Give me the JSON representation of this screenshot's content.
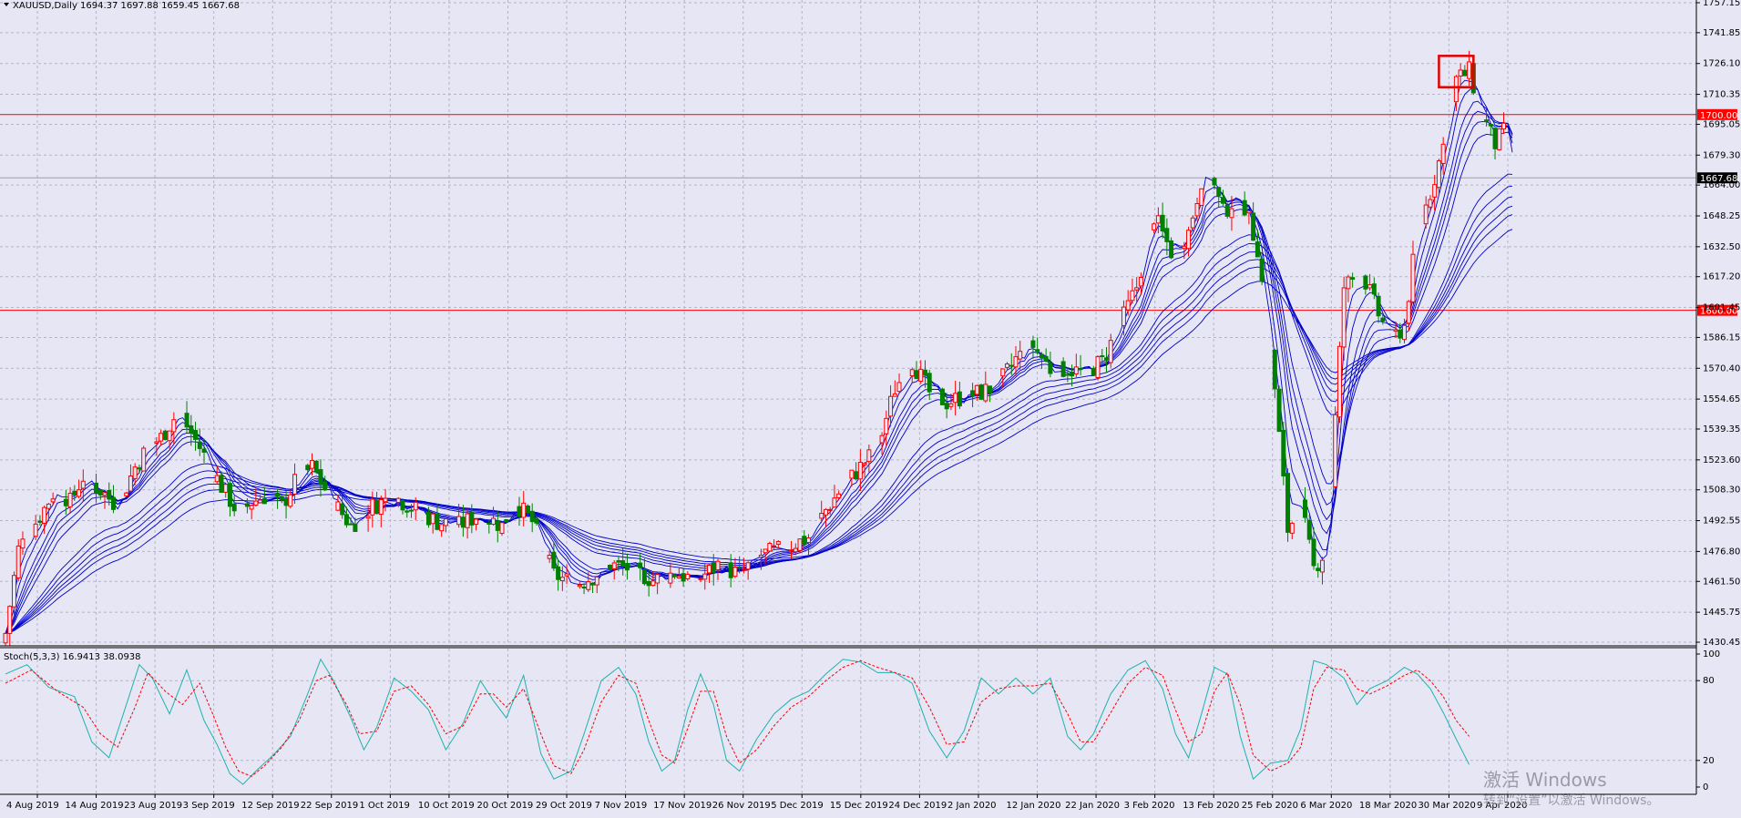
{
  "header": {
    "symbol": "XAUUSD,Daily",
    "ohlc": "1694.37 1697.88 1659.45 1667.68"
  },
  "stoch_header": "Stoch(5,3,3) 16.9413 38.0938",
  "watermark": {
    "line1": "激活 Windows",
    "line2": "转到“设置”以激活 Windows。"
  },
  "colors": {
    "background": "#e6e6f5",
    "grid": "#b4b4c8",
    "bull_candle": "#ff0000",
    "bear_candle": "#008000",
    "moving_averages": "#0000c8",
    "horizontal_levels": "#ff0000",
    "stoch_main": "#20b2aa",
    "stoch_signal": "#ff0000",
    "highlight_box": "#e00000"
  },
  "chart_data": [
    {
      "type": "candlestick",
      "symbol": "XAUUSD",
      "timeframe": "Daily",
      "ylim": [
        1430.45,
        1757.15
      ],
      "y_ticks": [
        1757.15,
        1741.85,
        1726.1,
        1710.35,
        1695.05,
        1679.3,
        1664.0,
        1648.25,
        1632.5,
        1617.2,
        1601.45,
        1586.15,
        1570.4,
        1554.65,
        1539.35,
        1523.6,
        1508.3,
        1492.55,
        1476.8,
        1461.5,
        1445.75,
        1430.45
      ],
      "x_labels": [
        "4 Aug 2019",
        "14 Aug 2019",
        "23 Aug 2019",
        "3 Sep 2019",
        "12 Sep 2019",
        "22 Sep 2019",
        "1 Oct 2019",
        "10 Oct 2019",
        "20 Oct 2019",
        "29 Oct 2019",
        "7 Nov 2019",
        "17 Nov 2019",
        "26 Nov 2019",
        "5 Dec 2019",
        "15 Dec 2019",
        "24 Dec 2019",
        "2 Jan 2020",
        "12 Jan 2020",
        "22 Jan 2020",
        "3 Feb 2020",
        "13 Feb 2020",
        "25 Feb 2020",
        "6 Mar 2020",
        "18 Mar 2020",
        "30 Mar 2020",
        "9 Apr 2020"
      ],
      "levels": [
        {
          "value": 1700.0,
          "label": "1700.00"
        },
        {
          "value": 1600.0,
          "label": "1600.00"
        }
      ],
      "current_price": {
        "value": 1667.68,
        "label": "1667.68"
      },
      "close_path": [
        [
          0,
          1435
        ],
        [
          3,
          1478
        ],
        [
          8,
          1495
        ],
        [
          12,
          1510
        ],
        [
          15,
          1502
        ],
        [
          18,
          1515
        ],
        [
          22,
          1508
        ],
        [
          26,
          1500
        ],
        [
          30,
          1520
        ],
        [
          33,
          1530
        ],
        [
          36,
          1535
        ],
        [
          40,
          1548
        ],
        [
          45,
          1530
        ],
        [
          50,
          1510
        ],
        [
          54,
          1496
        ],
        [
          57,
          1502
        ],
        [
          60,
          1505
        ],
        [
          64,
          1500
        ],
        [
          67,
          1512
        ],
        [
          71,
          1520
        ],
        [
          75,
          1505
        ],
        [
          80,
          1490
        ],
        [
          85,
          1500
        ],
        [
          90,
          1505
        ],
        [
          95,
          1498
        ],
        [
          100,
          1492
        ],
        [
          105,
          1490
        ],
        [
          110,
          1496
        ],
        [
          115,
          1490
        ],
        [
          118,
          1502
        ],
        [
          122,
          1492
        ],
        [
          127,
          1465
        ],
        [
          132,
          1460
        ],
        [
          136,
          1464
        ],
        [
          140,
          1470
        ],
        [
          145,
          1468
        ],
        [
          150,
          1462
        ],
        [
          155,
          1466
        ],
        [
          160,
          1462
        ],
        [
          165,
          1470
        ],
        [
          170,
          1465
        ],
        [
          175,
          1475
        ],
        [
          180,
          1478
        ],
        [
          186,
          1484
        ],
        [
          190,
          1498
        ],
        [
          194,
          1510
        ],
        [
          198,
          1520
        ],
        [
          202,
          1530
        ],
        [
          206,
          1560
        ],
        [
          210,
          1574
        ],
        [
          214,
          1558
        ],
        [
          218,
          1553
        ],
        [
          222,
          1556
        ],
        [
          226,
          1558
        ],
        [
          230,
          1562
        ],
        [
          234,
          1575
        ],
        [
          238,
          1582
        ],
        [
          242,
          1570
        ],
        [
          246,
          1570
        ],
        [
          250,
          1568
        ],
        [
          254,
          1574
        ],
        [
          258,
          1592
        ],
        [
          262,
          1612
        ],
        [
          266,
          1648
        ],
        [
          270,
          1630
        ],
        [
          274,
          1640
        ],
        [
          278,
          1676
        ],
        [
          282,
          1650
        ],
        [
          286,
          1660
        ],
        [
          290,
          1632
        ],
        [
          294,
          1560
        ],
        [
          297,
          1488
        ],
        [
          300,
          1500
        ],
        [
          303,
          1468
        ],
        [
          306,
          1478
        ],
        [
          310,
          1612
        ],
        [
          314,
          1620
        ],
        [
          318,
          1598
        ],
        [
          321,
          1585
        ],
        [
          324,
          1592
        ],
        [
          327,
          1640
        ],
        [
          330,
          1660
        ],
        [
          333,
          1684
        ],
        [
          336,
          1718
        ],
        [
          339,
          1722
        ],
        [
          342,
          1700
        ],
        [
          345,
          1685
        ],
        [
          348,
          1694
        ],
        [
          349,
          1667.68
        ]
      ],
      "ma_periods": [
        3,
        5,
        8,
        10,
        12,
        15,
        30,
        35,
        40,
        45,
        50,
        60
      ],
      "highlight_box": {
        "from_day": 332,
        "to_day": 340,
        "low": 1714,
        "high": 1730
      }
    },
    {
      "type": "line",
      "indicator": "Stochastic",
      "parameters": [
        5,
        3,
        3
      ],
      "ylim": [
        0,
        100
      ],
      "y_ticks": [
        100,
        80,
        20,
        0
      ],
      "series": [
        {
          "name": "main",
          "latest": 16.9413,
          "path": [
            [
              0,
              85
            ],
            [
              5,
              92
            ],
            [
              10,
              75
            ],
            [
              16,
              68
            ],
            [
              20,
              34
            ],
            [
              24,
              22
            ],
            [
              28,
              62
            ],
            [
              31,
              92
            ],
            [
              34,
              82
            ],
            [
              38,
              55
            ],
            [
              42,
              88
            ],
            [
              46,
              50
            ],
            [
              49,
              32
            ],
            [
              52,
              10
            ],
            [
              55,
              2
            ],
            [
              58,
              12
            ],
            [
              62,
              24
            ],
            [
              66,
              38
            ],
            [
              70,
              70
            ],
            [
              73,
              96
            ],
            [
              76,
              80
            ],
            [
              80,
              52
            ],
            [
              83,
              28
            ],
            [
              86,
              45
            ],
            [
              90,
              82
            ],
            [
              94,
              72
            ],
            [
              98,
              58
            ],
            [
              102,
              28
            ],
            [
              106,
              48
            ],
            [
              110,
              80
            ],
            [
              113,
              65
            ],
            [
              116,
              52
            ],
            [
              120,
              84
            ],
            [
              124,
              25
            ],
            [
              127,
              6
            ],
            [
              131,
              12
            ],
            [
              134,
              40
            ],
            [
              138,
              80
            ],
            [
              142,
              90
            ],
            [
              146,
              70
            ],
            [
              149,
              34
            ],
            [
              152,
              12
            ],
            [
              155,
              20
            ],
            [
              158,
              58
            ],
            [
              161,
              85
            ],
            [
              164,
              62
            ],
            [
              167,
              20
            ],
            [
              170,
              12
            ],
            [
              174,
              36
            ],
            [
              178,
              55
            ],
            [
              182,
              66
            ],
            [
              186,
              72
            ],
            [
              190,
              85
            ],
            [
              194,
              96
            ],
            [
              198,
              94
            ],
            [
              202,
              86
            ],
            [
              206,
              86
            ],
            [
              210,
              78
            ],
            [
              214,
              42
            ],
            [
              218,
              22
            ],
            [
              222,
              42
            ],
            [
              226,
              82
            ],
            [
              230,
              70
            ],
            [
              234,
              82
            ],
            [
              238,
              70
            ],
            [
              242,
              82
            ],
            [
              246,
              38
            ],
            [
              249,
              28
            ],
            [
              252,
              40
            ],
            [
              256,
              70
            ],
            [
              260,
              88
            ],
            [
              264,
              95
            ],
            [
              268,
              74
            ],
            [
              271,
              40
            ],
            [
              274,
              22
            ],
            [
              277,
              55
            ],
            [
              280,
              90
            ],
            [
              283,
              85
            ],
            [
              286,
              38
            ],
            [
              289,
              6
            ],
            [
              293,
              18
            ],
            [
              297,
              20
            ],
            [
              300,
              44
            ],
            [
              303,
              95
            ],
            [
              306,
              92
            ],
            [
              310,
              82
            ],
            [
              313,
              62
            ],
            [
              316,
              74
            ],
            [
              320,
              80
            ],
            [
              324,
              90
            ],
            [
              327,
              85
            ],
            [
              330,
              74
            ],
            [
              333,
              56
            ],
            [
              336,
              36
            ],
            [
              339,
              16.9
            ]
          ]
        },
        {
          "name": "signal",
          "latest": 38.0938,
          "path": [
            [
              0,
              78
            ],
            [
              6,
              88
            ],
            [
              12,
              72
            ],
            [
              18,
              60
            ],
            [
              22,
              40
            ],
            [
              26,
              30
            ],
            [
              30,
              60
            ],
            [
              33,
              86
            ],
            [
              37,
              72
            ],
            [
              41,
              62
            ],
            [
              45,
              78
            ],
            [
              48,
              55
            ],
            [
              51,
              30
            ],
            [
              54,
              12
            ],
            [
              57,
              8
            ],
            [
              60,
              16
            ],
            [
              64,
              30
            ],
            [
              68,
              50
            ],
            [
              72,
              80
            ],
            [
              75,
              84
            ],
            [
              79,
              62
            ],
            [
              82,
              40
            ],
            [
              86,
              42
            ],
            [
              90,
              72
            ],
            [
              94,
              76
            ],
            [
              98,
              62
            ],
            [
              102,
              40
            ],
            [
              106,
              46
            ],
            [
              110,
              70
            ],
            [
              113,
              70
            ],
            [
              116,
              60
            ],
            [
              120,
              74
            ],
            [
              124,
              40
            ],
            [
              127,
              16
            ],
            [
              131,
              10
            ],
            [
              134,
              28
            ],
            [
              138,
              64
            ],
            [
              142,
              84
            ],
            [
              146,
              78
            ],
            [
              149,
              50
            ],
            [
              152,
              24
            ],
            [
              155,
              18
            ],
            [
              158,
              44
            ],
            [
              161,
              72
            ],
            [
              164,
              72
            ],
            [
              167,
              38
            ],
            [
              170,
              18
            ],
            [
              174,
              28
            ],
            [
              178,
              46
            ],
            [
              182,
              60
            ],
            [
              186,
              68
            ],
            [
              190,
              80
            ],
            [
              194,
              90
            ],
            [
              198,
              95
            ],
            [
              202,
              90
            ],
            [
              206,
              86
            ],
            [
              210,
              82
            ],
            [
              214,
              60
            ],
            [
              218,
              32
            ],
            [
              222,
              34
            ],
            [
              226,
              64
            ],
            [
              230,
              74
            ],
            [
              234,
              76
            ],
            [
              238,
              76
            ],
            [
              242,
              78
            ],
            [
              246,
              55
            ],
            [
              249,
              34
            ],
            [
              252,
              34
            ],
            [
              256,
              56
            ],
            [
              260,
              78
            ],
            [
              264,
              90
            ],
            [
              268,
              84
            ],
            [
              271,
              58
            ],
            [
              274,
              34
            ],
            [
              277,
              40
            ],
            [
              280,
              72
            ],
            [
              283,
              86
            ],
            [
              286,
              62
            ],
            [
              289,
              24
            ],
            [
              293,
              12
            ],
            [
              297,
              18
            ],
            [
              300,
              30
            ],
            [
              303,
              74
            ],
            [
              306,
              90
            ],
            [
              310,
              88
            ],
            [
              313,
              74
            ],
            [
              316,
              70
            ],
            [
              320,
              76
            ],
            [
              324,
              84
            ],
            [
              327,
              88
            ],
            [
              330,
              80
            ],
            [
              333,
              68
            ],
            [
              336,
              50
            ],
            [
              339,
              38.1
            ]
          ]
        }
      ]
    }
  ]
}
